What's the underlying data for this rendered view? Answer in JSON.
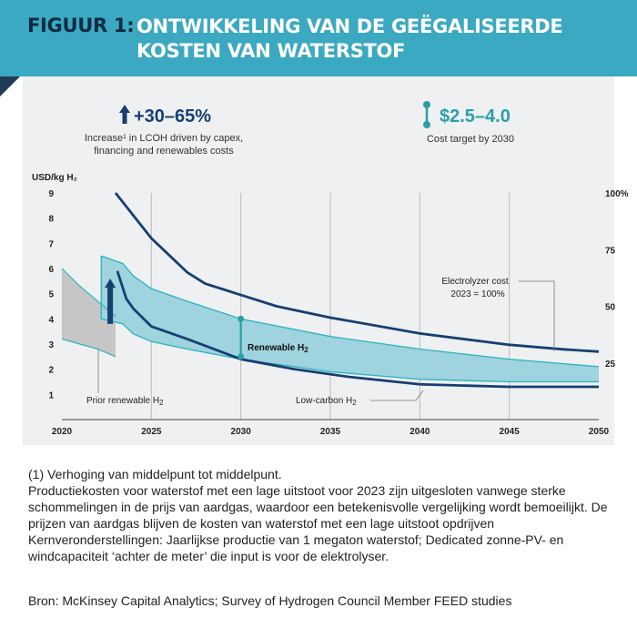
{
  "header": {
    "label": "FIGUUR 1:",
    "title": "ONTWIKKELING VAN DE GEËGALISEERDE KOSTEN VAN WATERSTOF"
  },
  "callouts": {
    "increase_value": "+30–65%",
    "increase_desc_line1": "Increase¹ in LCOH driven by capex,",
    "increase_desc_line2": "financing and renewables costs",
    "target_value": "$2.5–4.0",
    "target_desc": "Cost target by 2030"
  },
  "colors": {
    "header_bg": "#3aa9c1",
    "header_label": "#0f2a44",
    "band_fill": "#9fd3de",
    "band_edge": "#2bb3c0",
    "dark_line": "#163f73",
    "gray_band": "#c6c6c6",
    "target_marker": "#2aa0a8"
  },
  "chart_data": {
    "type": "line",
    "x_range": [
      2020,
      2050
    ],
    "x_ticks": [
      "2020",
      "2025",
      "2030",
      "2035",
      "2040",
      "2045",
      "2050"
    ],
    "y_left_label": "USD/kg H₂",
    "y_left_range": [
      0,
      9
    ],
    "y_left_ticks": [
      "1",
      "2",
      "3",
      "4",
      "5",
      "6",
      "7",
      "8",
      "9"
    ],
    "y_right_ticks": [
      {
        "label": "100%",
        "value": 100
      },
      {
        "label": "75",
        "value": 75
      },
      {
        "label": "50",
        "value": 50
      },
      {
        "label": "25",
        "value": 25
      }
    ],
    "y_right_range": [
      0,
      100
    ],
    "grid": "vertical",
    "series": [
      {
        "name": "Electrolyzer cost",
        "note": "2023 = 100%",
        "axis": "right",
        "x": [
          2023,
          2025,
          2027,
          2028,
          2030,
          2032,
          2035,
          2040,
          2043,
          2045,
          2048,
          2050
        ],
        "y": [
          100,
          80,
          65,
          60,
          55,
          50,
          45,
          38,
          35,
          33,
          31,
          30
        ]
      },
      {
        "name": "Renewable H₂ (upper)",
        "axis": "left",
        "x": [
          2022.2,
          2023.4,
          2024,
          2025,
          2027,
          2030,
          2035,
          2040,
          2045,
          2050
        ],
        "y": [
          6.5,
          6.2,
          5.7,
          5.2,
          4.7,
          4.0,
          3.3,
          2.8,
          2.4,
          2.1
        ]
      },
      {
        "name": "Renewable H₂ (lower)",
        "axis": "left",
        "x": [
          2022.2,
          2023.4,
          2024,
          2025,
          2027,
          2030,
          2035,
          2040,
          2045,
          2050
        ],
        "y": [
          4.0,
          3.8,
          3.4,
          3.1,
          2.8,
          2.4,
          1.9,
          1.6,
          1.5,
          1.5
        ]
      },
      {
        "name": "Low-carbon H₂",
        "axis": "left",
        "x": [
          2023.1,
          2023.6,
          2024,
          2025,
          2027,
          2030,
          2033,
          2036,
          2040,
          2045,
          2050
        ],
        "y": [
          5.9,
          4.8,
          4.4,
          3.7,
          3.2,
          2.4,
          2.0,
          1.7,
          1.4,
          1.3,
          1.3
        ]
      },
      {
        "name": "Prior renewable H₂ (upper)",
        "axis": "left",
        "x": [
          2020,
          2021,
          2022,
          2023
        ],
        "y": [
          6.0,
          5.3,
          4.7,
          4.1
        ]
      },
      {
        "name": "Prior renewable H₂ (lower)",
        "axis": "left",
        "x": [
          2020,
          2021,
          2022,
          2023
        ],
        "y": [
          3.2,
          3.0,
          2.8,
          2.5
        ]
      }
    ],
    "target_range": {
      "x": 2030,
      "y": [
        2.5,
        4.0
      ]
    },
    "increase_arrow": {
      "x": 2022.7,
      "y": [
        3.8,
        5.6
      ]
    },
    "annotations": {
      "electrolyzer_line1": "Electrolyzer cost",
      "electrolyzer_line2": "2023 = 100%",
      "renewable": "Renewable H",
      "renewable_sub": "2",
      "prior_renewable": "Prior renewable H",
      "prior_renewable_sub": "2",
      "low_carbon": "Low-carbon H",
      "low_carbon_sub": "2"
    }
  },
  "notes": {
    "footnote": "(1) Verhoging van middelpunt tot middelpunt.",
    "body": "Productiekosten voor waterstof met een lage uitstoot voor 2023 zijn uitgesloten vanwege sterke schommelingen in de prijs van aardgas, waardoor een betekenisvolle vergelijking wordt bemoeilijkt. De prijzen van aardgas blijven de kosten van waterstof met een lage uitstoot opdrijven Kernveronderstellingen: Jaarlijkse productie van 1 megaton waterstof; Dedicated zonne-PV- en windcapaciteit ‘achter de meter’ die input is voor de elektrolyser."
  },
  "source": "Bron: McKinsey Capital Analytics; Survey of Hydrogen Council Member FEED studies"
}
